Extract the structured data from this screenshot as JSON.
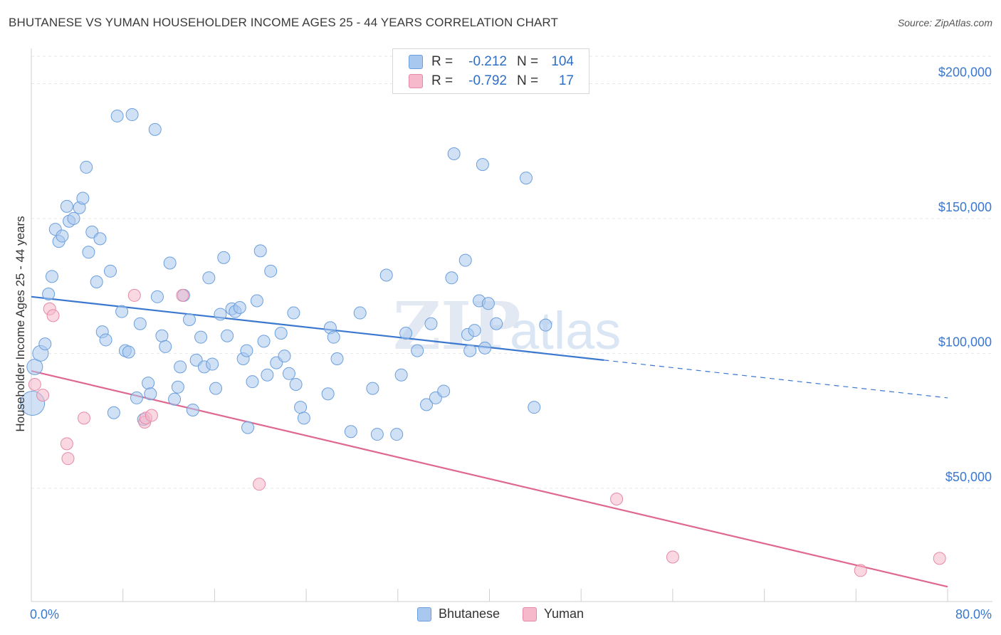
{
  "title": "BHUTANESE VS YUMAN HOUSEHOLDER INCOME AGES 25 - 44 YEARS CORRELATION CHART",
  "source": "Source: ZipAtlas.com",
  "watermark": {
    "zip": "ZIP",
    "atlas": "atlas"
  },
  "legend": {
    "rows": [
      {
        "r_label": "R =",
        "r_value": "-0.212",
        "n_label": "N =",
        "n_value": "104",
        "color": "#a9c8ef",
        "stroke": "#6b9fdc"
      },
      {
        "r_label": "R =",
        "r_value": "-0.792",
        "n_label": "N =",
        "n_value": "17",
        "color": "#f6b8cb",
        "stroke": "#e48aa8"
      }
    ]
  },
  "chart_data": {
    "type": "scatter",
    "title": "BHUTANESE VS YUMAN HOUSEHOLDER INCOME AGES 25 - 44 YEARS CORRELATION CHART",
    "xlabel": "",
    "ylabel": "Householder Income Ages 25 - 44 years",
    "xlim": [
      0,
      80
    ],
    "ylim": [
      8000,
      212000
    ],
    "x_tick_labels": {
      "left": "0.0%",
      "right": "80.0%"
    },
    "y_ticks": [
      {
        "value": 50000,
        "label": "$50,000"
      },
      {
        "value": 100000,
        "label": "$100,000"
      },
      {
        "value": 150000,
        "label": "$150,000"
      },
      {
        "value": 200000,
        "label": "$200,000"
      }
    ],
    "grid": true,
    "legend_position": "top-center",
    "series": [
      {
        "name": "Bhutanese",
        "color": "#a9c8ef",
        "stroke": "#6b9fdc",
        "line_color": "#3a78d0",
        "trend": {
          "x1": 0,
          "y1": 121000,
          "x2": 50,
          "y2": 97500,
          "dash_to_x": 80,
          "dash_to_y": 83500
        },
        "points": [
          [
            0.1,
            81500
          ],
          [
            0.3,
            95000
          ],
          [
            0.8,
            100000
          ],
          [
            1.2,
            103500
          ],
          [
            1.5,
            122000
          ],
          [
            1.8,
            128500
          ],
          [
            2.1,
            146000
          ],
          [
            2.4,
            141500
          ],
          [
            2.7,
            143500
          ],
          [
            3.1,
            154500
          ],
          [
            3.3,
            149000
          ],
          [
            3.7,
            150000
          ],
          [
            4.2,
            154000
          ],
          [
            4.5,
            157500
          ],
          [
            4.8,
            169000
          ],
          [
            5.0,
            137500
          ],
          [
            5.3,
            145000
          ],
          [
            5.7,
            126500
          ],
          [
            6.0,
            142500
          ],
          [
            6.2,
            108000
          ],
          [
            6.5,
            105000
          ],
          [
            6.9,
            130500
          ],
          [
            7.2,
            78000
          ],
          [
            7.5,
            188000
          ],
          [
            7.9,
            115500
          ],
          [
            8.2,
            101000
          ],
          [
            8.5,
            100500
          ],
          [
            8.8,
            188500
          ],
          [
            9.2,
            83500
          ],
          [
            9.5,
            111000
          ],
          [
            9.8,
            75500
          ],
          [
            10.2,
            89000
          ],
          [
            10.4,
            85000
          ],
          [
            10.8,
            183000
          ],
          [
            11.0,
            121000
          ],
          [
            11.4,
            106500
          ],
          [
            11.7,
            102500
          ],
          [
            12.1,
            133500
          ],
          [
            12.5,
            83000
          ],
          [
            12.8,
            87500
          ],
          [
            13.0,
            95000
          ],
          [
            13.3,
            121500
          ],
          [
            13.8,
            112500
          ],
          [
            14.1,
            79000
          ],
          [
            14.4,
            97500
          ],
          [
            14.8,
            106000
          ],
          [
            15.1,
            95000
          ],
          [
            15.5,
            128000
          ],
          [
            15.8,
            96000
          ],
          [
            16.1,
            87000
          ],
          [
            16.5,
            114500
          ],
          [
            16.8,
            135500
          ],
          [
            17.1,
            106500
          ],
          [
            17.5,
            116500
          ],
          [
            17.8,
            115500
          ],
          [
            18.2,
            117000
          ],
          [
            18.5,
            98000
          ],
          [
            18.8,
            101000
          ],
          [
            18.9,
            72500
          ],
          [
            19.3,
            89500
          ],
          [
            19.7,
            119500
          ],
          [
            20.0,
            138000
          ],
          [
            20.3,
            104500
          ],
          [
            20.6,
            92000
          ],
          [
            20.9,
            130500
          ],
          [
            21.4,
            96500
          ],
          [
            21.8,
            107500
          ],
          [
            22.1,
            99000
          ],
          [
            22.5,
            92500
          ],
          [
            22.9,
            115000
          ],
          [
            23.1,
            88500
          ],
          [
            23.5,
            80000
          ],
          [
            23.8,
            76000
          ],
          [
            25.9,
            85000
          ],
          [
            26.1,
            109500
          ],
          [
            26.4,
            106000
          ],
          [
            26.7,
            98000
          ],
          [
            27.9,
            71000
          ],
          [
            28.7,
            115000
          ],
          [
            29.8,
            87000
          ],
          [
            30.2,
            70000
          ],
          [
            31.0,
            129000
          ],
          [
            31.9,
            70000
          ],
          [
            32.3,
            92000
          ],
          [
            32.7,
            107500
          ],
          [
            33.7,
            101000
          ],
          [
            34.5,
            81000
          ],
          [
            34.9,
            111000
          ],
          [
            35.3,
            83500
          ],
          [
            36.0,
            86000
          ],
          [
            36.7,
            128000
          ],
          [
            36.9,
            174000
          ],
          [
            37.9,
            134500
          ],
          [
            38.1,
            107000
          ],
          [
            38.3,
            101000
          ],
          [
            38.7,
            108500
          ],
          [
            39.1,
            119500
          ],
          [
            39.4,
            170000
          ],
          [
            39.6,
            102000
          ],
          [
            39.9,
            118500
          ],
          [
            40.6,
            111000
          ],
          [
            43.2,
            165000
          ],
          [
            43.9,
            80000
          ],
          [
            44.9,
            110500
          ]
        ],
        "sizes": {
          "0.1": 34,
          "0.3": 22,
          "0.8": 22
        }
      },
      {
        "name": "Yuman",
        "color": "#f6b8cb",
        "stroke": "#e48aa8",
        "line_color": "#e0678f",
        "trend": {
          "x1": 0,
          "y1": 93500,
          "x2": 80,
          "y2": 13500
        },
        "points": [
          [
            0.3,
            88500
          ],
          [
            1.0,
            84500
          ],
          [
            1.6,
            116500
          ],
          [
            1.9,
            114000
          ],
          [
            3.1,
            66500
          ],
          [
            3.2,
            61000
          ],
          [
            4.6,
            76000
          ],
          [
            9.0,
            121500
          ],
          [
            9.9,
            74500
          ],
          [
            10.0,
            76000
          ],
          [
            10.5,
            77000
          ],
          [
            13.2,
            121500
          ],
          [
            19.9,
            51500
          ],
          [
            51.1,
            46000
          ],
          [
            56.0,
            24500
          ],
          [
            72.4,
            19500
          ],
          [
            79.3,
            24000
          ]
        ]
      }
    ]
  },
  "bottom_legend": [
    {
      "label": "Bhutanese",
      "color": "#a9c8ef",
      "stroke": "#6b9fdc"
    },
    {
      "label": "Yuman",
      "color": "#f6b8cb",
      "stroke": "#e48aa8"
    }
  ]
}
